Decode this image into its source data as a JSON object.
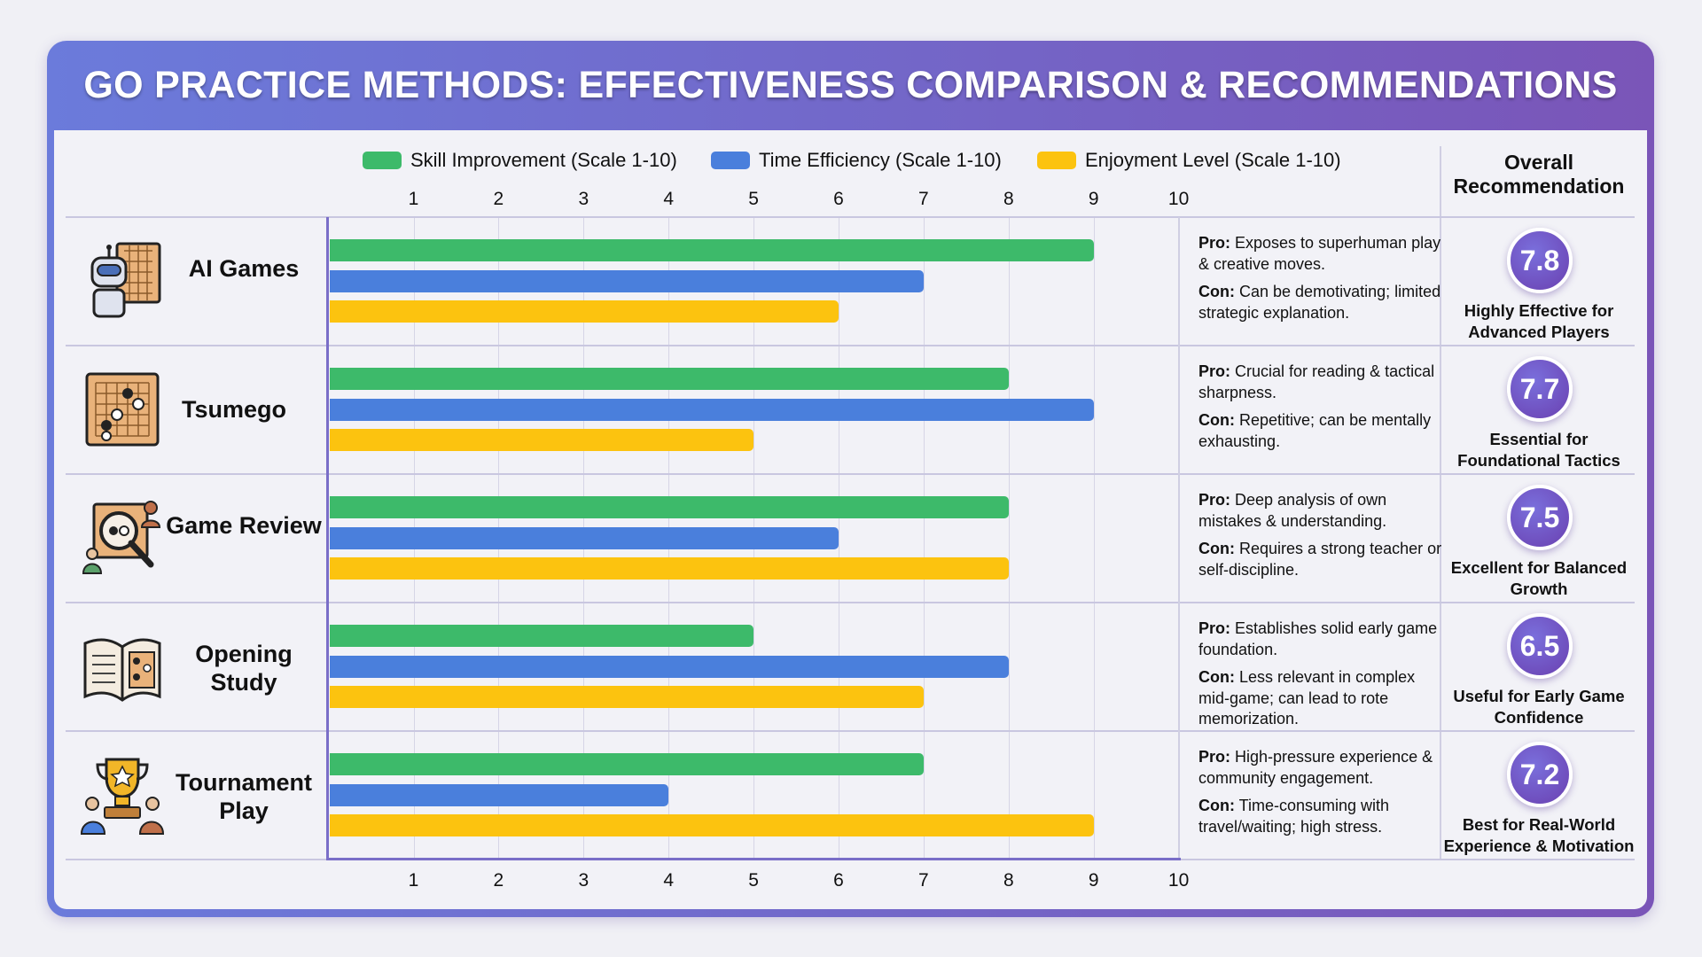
{
  "title": "GO PRACTICE METHODS: EFFECTIVENESS COMPARISON & RECOMMENDATIONS",
  "recommendation_header": "Overall Recommendation",
  "colors": {
    "skill": "#3dba6a",
    "time": "#4a7fdc",
    "enjoy": "#fcc30f",
    "accent": "#7158c4"
  },
  "chart_data": {
    "type": "bar",
    "orientation": "horizontal",
    "title": "GO PRACTICE METHODS: EFFECTIVENESS COMPARISON & RECOMMENDATIONS",
    "categories": [
      "AI Games",
      "Tsumego",
      "Game Review",
      "Opening Study",
      "Tournament Play"
    ],
    "series": [
      {
        "name": "Skill Improvement (Scale 1-10)",
        "key": "skill",
        "values": [
          9,
          8,
          8,
          5,
          7
        ]
      },
      {
        "name": "Time Efficiency (Scale 1-10)",
        "key": "time",
        "values": [
          7,
          9,
          6,
          8,
          4
        ]
      },
      {
        "name": "Enjoyment Level (Scale 1-10)",
        "key": "enjoy",
        "values": [
          6,
          5,
          8,
          7,
          9
        ]
      }
    ],
    "xlim": [
      0,
      10
    ],
    "ticks": [
      "1",
      "2",
      "3",
      "4",
      "5",
      "6",
      "7",
      "8",
      "9",
      "10"
    ],
    "grid": true,
    "legend": "top"
  },
  "methods": [
    {
      "name": "AI Games",
      "icon": "robot-go-board-icon",
      "pro_label": "Pro:",
      "pro": "Exposes to superhuman play & creative moves.",
      "con_label": "Con:",
      "con": "Can be demotivating; limited strategic explanation.",
      "score": "7.8",
      "recommendation": "Highly Effective for Advanced Players"
    },
    {
      "name": "Tsumego",
      "icon": "go-problem-board-icon",
      "pro_label": "Pro:",
      "pro": "Crucial for reading & tactical sharpness.",
      "con_label": "Con:",
      "con": "Repetitive; can be mentally exhausting.",
      "score": "7.7",
      "recommendation": "Essential for Foundational Tactics"
    },
    {
      "name": "Game Review",
      "icon": "magnifier-review-icon",
      "pro_label": "Pro:",
      "pro": "Deep analysis of own mistakes & understanding.",
      "con_label": "Con:",
      "con": "Requires a strong teacher or self-discipline.",
      "score": "7.5",
      "recommendation": "Excellent for Balanced Growth"
    },
    {
      "name": "Opening Study",
      "icon": "open-book-icon",
      "pro_label": "Pro:",
      "pro": "Establishes solid early game foundation.",
      "con_label": "Con:",
      "con": "Less relevant in complex mid-game; can lead to rote memorization.",
      "score": "6.5",
      "recommendation": "Useful for Early Game Confidence"
    },
    {
      "name": "Tournament Play",
      "icon": "trophy-players-icon",
      "pro_label": "Pro:",
      "pro": "High-pressure experience & community engagement.",
      "con_label": "Con:",
      "con": "Time-consuming with travel/waiting; high stress.",
      "score": "7.2",
      "recommendation": "Best for Real-World Experience & Motivation"
    }
  ]
}
